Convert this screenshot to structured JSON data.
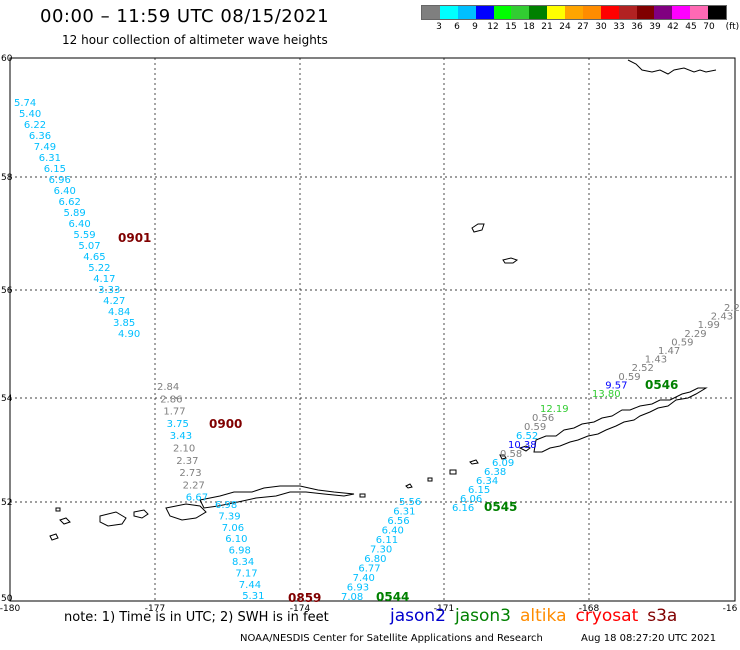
{
  "header": {
    "title": "00:00 – 11:59 UTC 08/15/2021",
    "subtitle": "12 hour collection of altimeter wave heights"
  },
  "scale": {
    "unit": "(ft)",
    "colors": [
      "#7f7f7f",
      "#00ffff",
      "#00bfff",
      "#0000ff",
      "#00ff00",
      "#32cd32",
      "#008000",
      "#ffff00",
      "#ffa500",
      "#ff8c00",
      "#ff0000",
      "#b22222",
      "#800000",
      "#800080",
      "#ff00ff",
      "#ff69b4",
      "#000000"
    ],
    "labels": [
      "3",
      "6",
      "9",
      "12",
      "15",
      "18",
      "21",
      "24",
      "27",
      "30",
      "33",
      "36",
      "39",
      "42",
      "45",
      "70"
    ]
  },
  "axes": {
    "lon_labels": [
      "-180",
      "-177",
      "-174",
      "-171",
      "-168",
      "-16"
    ],
    "lat_labels": [
      "60",
      "58",
      "56",
      "54",
      "52",
      "50"
    ]
  },
  "tracks": [
    {
      "time": "0901",
      "time_color": "#800000",
      "points": [
        {
          "v": "5.74",
          "c": "#00bfff"
        },
        {
          "v": "5.40",
          "c": "#00bfff"
        },
        {
          "v": "6.22",
          "c": "#00bfff"
        },
        {
          "v": "6.36",
          "c": "#00bfff"
        },
        {
          "v": "7.49",
          "c": "#00bfff"
        },
        {
          "v": "6.31",
          "c": "#00bfff"
        },
        {
          "v": "6.15",
          "c": "#00bfff"
        },
        {
          "v": "6.96",
          "c": "#00bfff"
        },
        {
          "v": "6.40",
          "c": "#00bfff"
        },
        {
          "v": "6.62",
          "c": "#00bfff"
        },
        {
          "v": "5.89",
          "c": "#00bfff"
        },
        {
          "v": "6.40",
          "c": "#00bfff"
        },
        {
          "v": "5.59",
          "c": "#00bfff"
        },
        {
          "v": "5.07",
          "c": "#00bfff"
        },
        {
          "v": "4.65",
          "c": "#00bfff"
        },
        {
          "v": "5.22",
          "c": "#00bfff"
        },
        {
          "v": "4.17",
          "c": "#00bfff"
        },
        {
          "v": "3.33",
          "c": "#00bfff"
        },
        {
          "v": "4.27",
          "c": "#00bfff"
        },
        {
          "v": "4.84",
          "c": "#00bfff"
        },
        {
          "v": "3.85",
          "c": "#00bfff"
        },
        {
          "v": "4.90",
          "c": "#00bfff"
        }
      ]
    },
    {
      "time": "0900",
      "time_color": "#800000",
      "points": [
        {
          "v": "2.84",
          "c": "#7f7f7f"
        },
        {
          "v": "2.86",
          "c": "#7f7f7f"
        },
        {
          "v": "1.77",
          "c": "#7f7f7f"
        },
        {
          "v": "3.75",
          "c": "#00bfff"
        },
        {
          "v": "3.43",
          "c": "#00bfff"
        },
        {
          "v": "2.10",
          "c": "#7f7f7f"
        },
        {
          "v": "2.37",
          "c": "#7f7f7f"
        },
        {
          "v": "2.73",
          "c": "#7f7f7f"
        },
        {
          "v": "2.27",
          "c": "#7f7f7f"
        },
        {
          "v": "6.67",
          "c": "#00bfff"
        }
      ]
    },
    {
      "time": "0859",
      "time_color": "#800000",
      "points": [
        {
          "v": "6.98",
          "c": "#00bfff"
        },
        {
          "v": "7.39",
          "c": "#00bfff"
        },
        {
          "v": "7.06",
          "c": "#00bfff"
        },
        {
          "v": "6.10",
          "c": "#00bfff"
        },
        {
          "v": "6.98",
          "c": "#00bfff"
        },
        {
          "v": "8.34",
          "c": "#00bfff"
        },
        {
          "v": "7.17",
          "c": "#00bfff"
        },
        {
          "v": "7.44",
          "c": "#00bfff"
        },
        {
          "v": "5.31",
          "c": "#00bfff"
        }
      ]
    },
    {
      "time": "0544",
      "time_color": "#008000",
      "points": [
        {
          "v": "7.08",
          "c": "#00bfff"
        },
        {
          "v": "6.93",
          "c": "#00bfff"
        },
        {
          "v": "7.40",
          "c": "#00bfff"
        },
        {
          "v": "6.77",
          "c": "#00bfff"
        },
        {
          "v": "6.80",
          "c": "#00bfff"
        },
        {
          "v": "7.30",
          "c": "#00bfff"
        },
        {
          "v": "6.11",
          "c": "#00bfff"
        },
        {
          "v": "6.40",
          "c": "#00bfff"
        },
        {
          "v": "6.56",
          "c": "#00bfff"
        },
        {
          "v": "6.31",
          "c": "#00bfff"
        },
        {
          "v": "5.56",
          "c": "#00bfff"
        }
      ]
    },
    {
      "time": "0545",
      "time_color": "#008000",
      "points": [
        {
          "v": "6.16",
          "c": "#00bfff"
        },
        {
          "v": "6.06",
          "c": "#00bfff"
        },
        {
          "v": "6.15",
          "c": "#00bfff"
        },
        {
          "v": "6.34",
          "c": "#00bfff"
        },
        {
          "v": "6.38",
          "c": "#00bfff"
        },
        {
          "v": "6.09",
          "c": "#00bfff"
        },
        {
          "v": "0.58",
          "c": "#7f7f7f"
        },
        {
          "v": "10.38",
          "c": "#0000ff"
        },
        {
          "v": "6.52",
          "c": "#00bfff"
        },
        {
          "v": "0.59",
          "c": "#7f7f7f"
        },
        {
          "v": "0.56",
          "c": "#7f7f7f"
        },
        {
          "v": "12.19",
          "c": "#32cd32"
        }
      ]
    },
    {
      "time": "0546",
      "time_color": "#008000",
      "points": [
        {
          "v": "13.80",
          "c": "#32cd32"
        },
        {
          "v": "9.57",
          "c": "#0000ff"
        },
        {
          "v": "0.59",
          "c": "#7f7f7f"
        },
        {
          "v": "2.52",
          "c": "#7f7f7f"
        },
        {
          "v": "1.43",
          "c": "#7f7f7f"
        },
        {
          "v": "1.47",
          "c": "#7f7f7f"
        },
        {
          "v": "0.59",
          "c": "#7f7f7f"
        },
        {
          "v": "2.29",
          "c": "#7f7f7f"
        },
        {
          "v": "1.99",
          "c": "#7f7f7f"
        },
        {
          "v": "2.43",
          "c": "#7f7f7f"
        },
        {
          "v": "2.2",
          "c": "#7f7f7f"
        }
      ]
    }
  ],
  "footer": {
    "note": "note: 1) Time is in UTC; 2) SWH is in feet",
    "satellites": [
      {
        "name": "jason2",
        "color": "#0000cd"
      },
      {
        "name": "jason3",
        "color": "#008000"
      },
      {
        "name": "altika",
        "color": "#ff8c00"
      },
      {
        "name": "cryosat",
        "color": "#ff0000"
      },
      {
        "name": "s3a",
        "color": "#800000"
      }
    ],
    "credit": "NOAA/NESDIS Center for Satellite Applications and Research",
    "timestamp": "Aug 18 08:27:20 UTC 2021"
  }
}
